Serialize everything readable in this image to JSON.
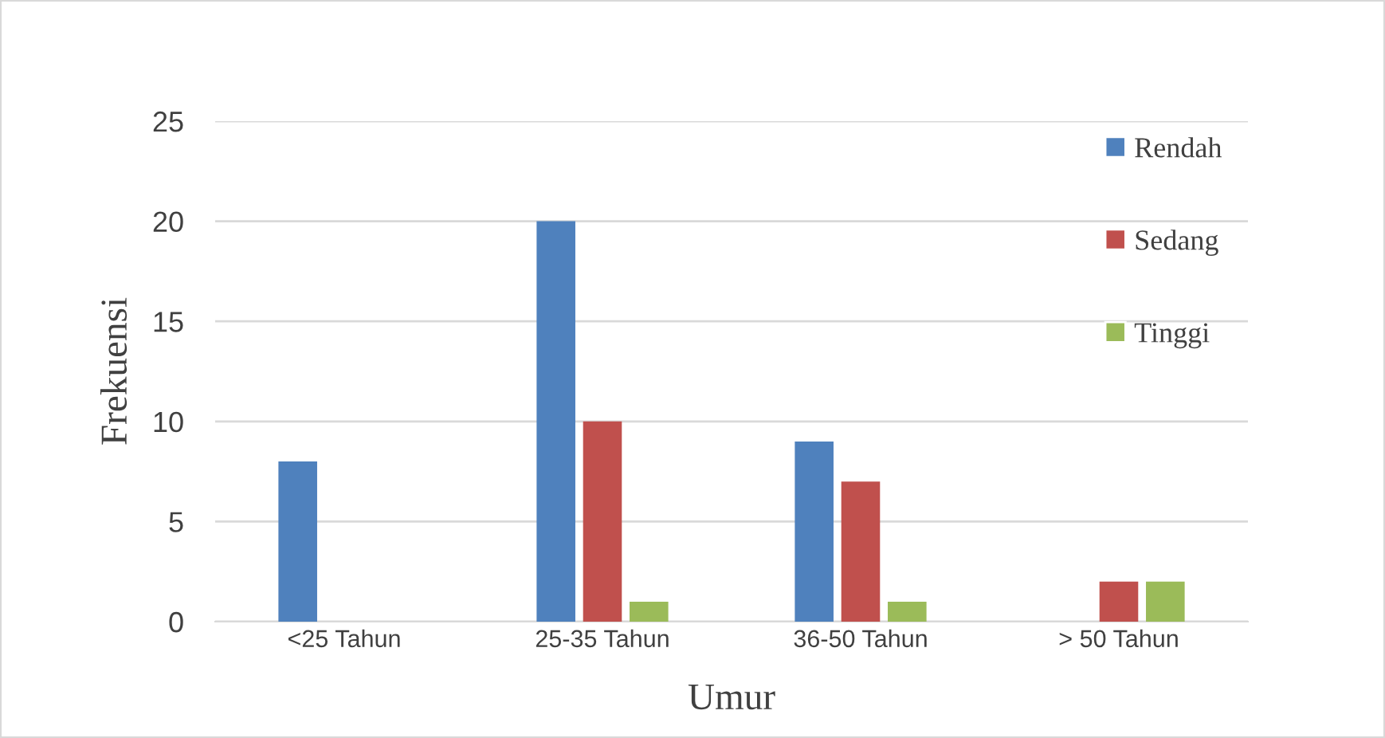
{
  "chart_data": {
    "type": "bar",
    "xlabel": "Umur",
    "ylabel": "Frekuensi",
    "categories": [
      "<25 Tahun",
      "25-35 Tahun",
      "36-50 Tahun",
      "> 50 Tahun"
    ],
    "series": [
      {
        "name": "Rendah",
        "color": "#4f81bd",
        "values": [
          8,
          20,
          9,
          0
        ]
      },
      {
        "name": "Sedang",
        "color": "#c0504d",
        "values": [
          0,
          10,
          7,
          2
        ]
      },
      {
        "name": "Tinggi",
        "color": "#9bbb59",
        "values": [
          0,
          1,
          1,
          2
        ]
      }
    ],
    "ylim": [
      0,
      25
    ],
    "yticks": [
      0,
      5,
      10,
      15,
      20,
      25
    ],
    "grid": "y",
    "legend": "top right"
  }
}
